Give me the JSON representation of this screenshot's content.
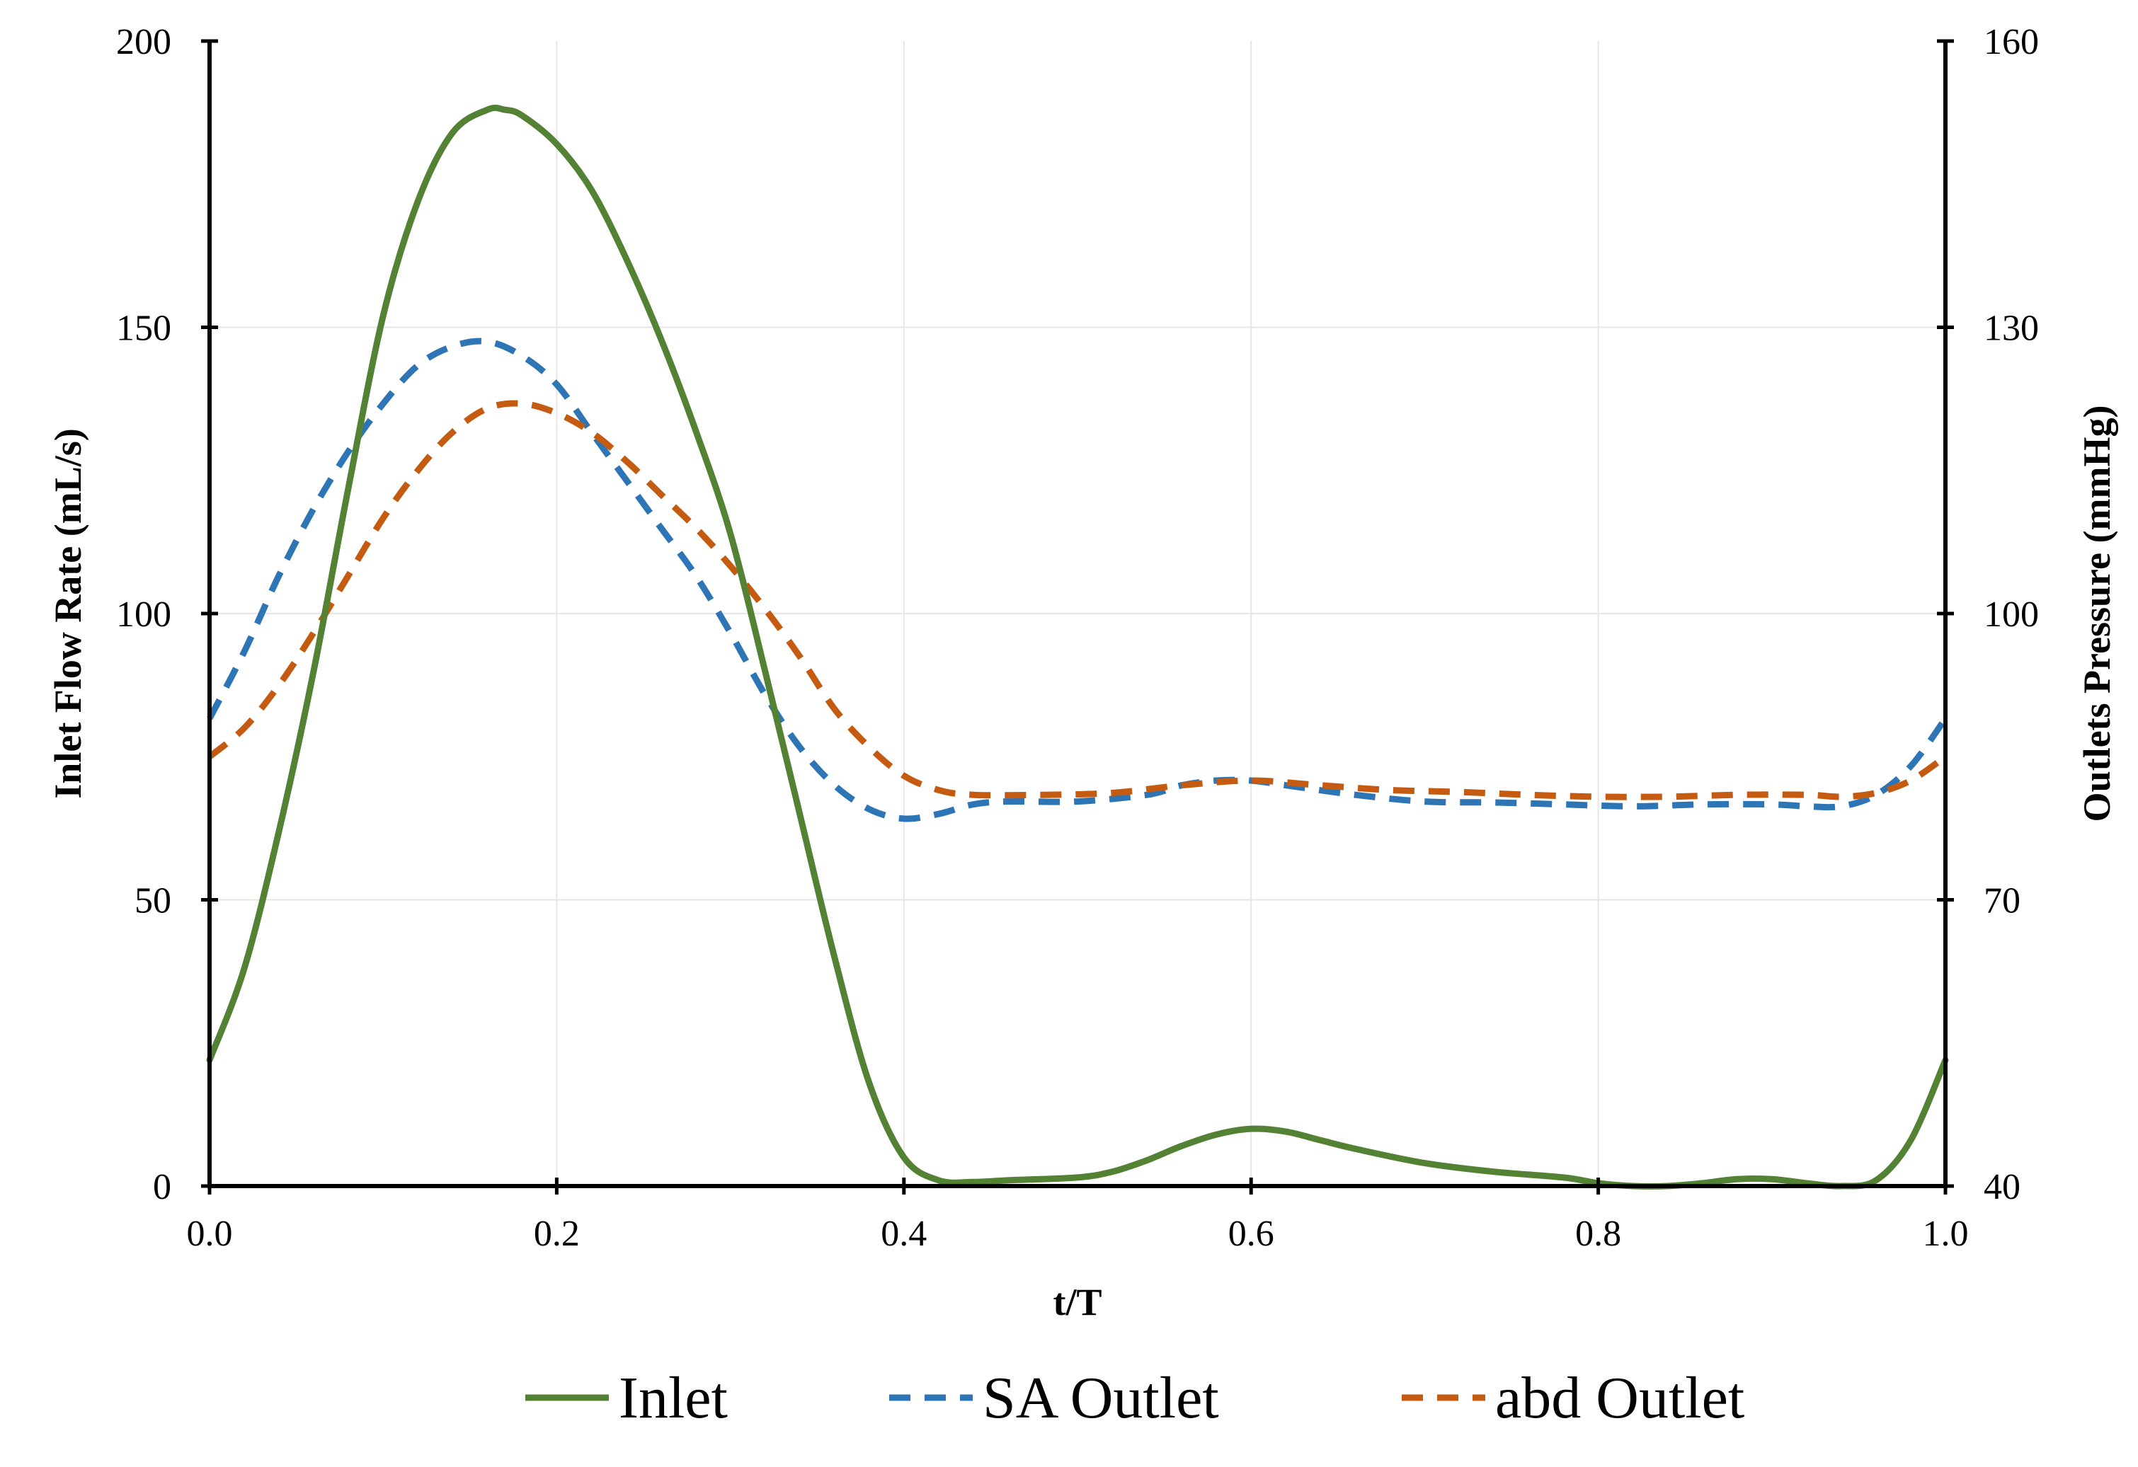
{
  "chart_data": {
    "type": "line",
    "title": "",
    "xlabel": "t/T",
    "ylabel": "Inlet Flow Rate (mL/s)",
    "y2label": "Outlets Pressure (mmHg)",
    "xlim": [
      0,
      1
    ],
    "ylim": [
      0,
      200
    ],
    "y2lim": [
      40,
      160
    ],
    "x_ticks": [
      "0.0",
      "0.2",
      "0.4",
      "0.6",
      "0.8",
      "1.0"
    ],
    "y_ticks": [
      "0",
      "50",
      "100",
      "150",
      "200"
    ],
    "y2_ticks": [
      "40",
      "70",
      "100",
      "130",
      "160"
    ],
    "grid": true,
    "legend_position": "bottom",
    "series": [
      {
        "name": "Inlet",
        "axis": "left",
        "color": "#548235",
        "dash": "solid",
        "points": [
          [
            0.0,
            22
          ],
          [
            0.02,
            38
          ],
          [
            0.04,
            62
          ],
          [
            0.06,
            90
          ],
          [
            0.08,
            122
          ],
          [
            0.1,
            152
          ],
          [
            0.12,
            172
          ],
          [
            0.14,
            184
          ],
          [
            0.16,
            188
          ],
          [
            0.17,
            188
          ],
          [
            0.18,
            187
          ],
          [
            0.2,
            182
          ],
          [
            0.22,
            174
          ],
          [
            0.24,
            162
          ],
          [
            0.26,
            148
          ],
          [
            0.28,
            132
          ],
          [
            0.3,
            114
          ],
          [
            0.32,
            90
          ],
          [
            0.34,
            65
          ],
          [
            0.36,
            40
          ],
          [
            0.38,
            18
          ],
          [
            0.4,
            5
          ],
          [
            0.42,
            1
          ],
          [
            0.44,
            0.7
          ],
          [
            0.46,
            1
          ],
          [
            0.5,
            1.5
          ],
          [
            0.52,
            2.5
          ],
          [
            0.54,
            4.5
          ],
          [
            0.56,
            7
          ],
          [
            0.58,
            9
          ],
          [
            0.6,
            10
          ],
          [
            0.62,
            9.5
          ],
          [
            0.64,
            8
          ],
          [
            0.66,
            6.5
          ],
          [
            0.7,
            4
          ],
          [
            0.74,
            2.5
          ],
          [
            0.78,
            1.5
          ],
          [
            0.8,
            0.5
          ],
          [
            0.82,
            0
          ],
          [
            0.84,
            0
          ],
          [
            0.86,
            0.5
          ],
          [
            0.88,
            1.2
          ],
          [
            0.9,
            1.2
          ],
          [
            0.92,
            0.5
          ],
          [
            0.94,
            0
          ],
          [
            0.96,
            1
          ],
          [
            0.98,
            8
          ],
          [
            1.0,
            22
          ]
        ]
      },
      {
        "name": "SA Outlet",
        "axis": "right",
        "color": "#2E75B6",
        "dash": "dashed",
        "points": [
          [
            0.0,
            89
          ],
          [
            0.02,
            96
          ],
          [
            0.04,
            104
          ],
          [
            0.06,
            111
          ],
          [
            0.08,
            117
          ],
          [
            0.1,
            122
          ],
          [
            0.12,
            126
          ],
          [
            0.14,
            128
          ],
          [
            0.16,
            128.5
          ],
          [
            0.18,
            127
          ],
          [
            0.2,
            124
          ],
          [
            0.22,
            119
          ],
          [
            0.24,
            114
          ],
          [
            0.26,
            109
          ],
          [
            0.28,
            104
          ],
          [
            0.3,
            98
          ],
          [
            0.32,
            91.5
          ],
          [
            0.34,
            86
          ],
          [
            0.36,
            82
          ],
          [
            0.38,
            79.5
          ],
          [
            0.4,
            78.5
          ],
          [
            0.42,
            79
          ],
          [
            0.44,
            80
          ],
          [
            0.46,
            80.3
          ],
          [
            0.5,
            80.3
          ],
          [
            0.54,
            81
          ],
          [
            0.56,
            82
          ],
          [
            0.58,
            82.5
          ],
          [
            0.6,
            82.5
          ],
          [
            0.62,
            82
          ],
          [
            0.66,
            81
          ],
          [
            0.7,
            80.3
          ],
          [
            0.74,
            80.2
          ],
          [
            0.78,
            80
          ],
          [
            0.82,
            79.8
          ],
          [
            0.86,
            80
          ],
          [
            0.9,
            80
          ],
          [
            0.92,
            79.8
          ],
          [
            0.94,
            79.8
          ],
          [
            0.96,
            81
          ],
          [
            0.98,
            84
          ],
          [
            1.0,
            89
          ]
        ]
      },
      {
        "name": "abd Outlet",
        "axis": "right",
        "color": "#C55A11",
        "dash": "dashed",
        "points": [
          [
            0.0,
            85
          ],
          [
            0.02,
            88
          ],
          [
            0.04,
            92.5
          ],
          [
            0.06,
            98
          ],
          [
            0.08,
            104
          ],
          [
            0.1,
            110
          ],
          [
            0.12,
            115
          ],
          [
            0.14,
            119
          ],
          [
            0.16,
            121.5
          ],
          [
            0.18,
            122
          ],
          [
            0.2,
            121
          ],
          [
            0.22,
            119
          ],
          [
            0.24,
            116
          ],
          [
            0.26,
            112.5
          ],
          [
            0.28,
            109
          ],
          [
            0.3,
            105
          ],
          [
            0.32,
            100.5
          ],
          [
            0.34,
            95.5
          ],
          [
            0.36,
            90
          ],
          [
            0.38,
            86
          ],
          [
            0.4,
            83
          ],
          [
            0.42,
            81.5
          ],
          [
            0.44,
            81
          ],
          [
            0.48,
            81
          ],
          [
            0.52,
            81.2
          ],
          [
            0.56,
            82
          ],
          [
            0.6,
            82.5
          ],
          [
            0.64,
            82
          ],
          [
            0.68,
            81.5
          ],
          [
            0.72,
            81.3
          ],
          [
            0.76,
            81
          ],
          [
            0.8,
            80.8
          ],
          [
            0.84,
            80.8
          ],
          [
            0.88,
            81
          ],
          [
            0.92,
            81
          ],
          [
            0.94,
            80.8
          ],
          [
            0.96,
            81.2
          ],
          [
            0.98,
            82.5
          ],
          [
            1.0,
            85
          ]
        ]
      }
    ]
  }
}
